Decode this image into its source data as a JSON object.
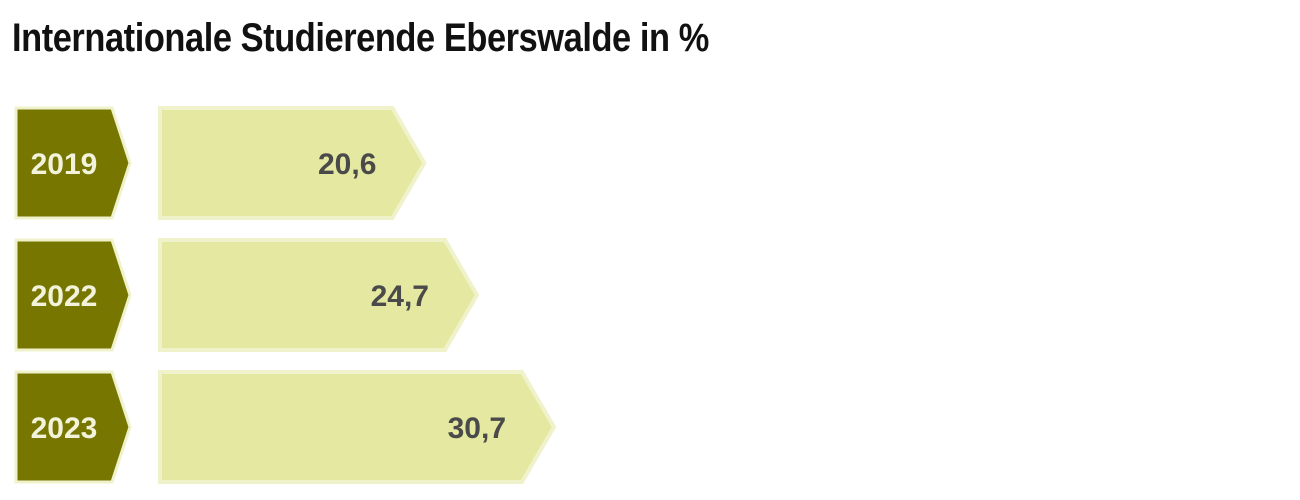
{
  "chart_data": {
    "type": "bar",
    "orientation": "horizontal",
    "title": "Internationale Studierende Eberswalde in %",
    "categories": [
      "2019",
      "2022",
      "2023"
    ],
    "values": [
      20.6,
      24.7,
      30.7
    ],
    "value_labels": [
      "20,6",
      "24,7",
      "30,7"
    ],
    "xlim": [
      0,
      30.7
    ],
    "grid": false,
    "colors": {
      "category_tab": "#767600",
      "bar_fill": "#e4e8a0",
      "bar_outline": "#f0f2cc",
      "value_text": "#4a4a4a",
      "category_text": "#f3f3dc"
    }
  }
}
